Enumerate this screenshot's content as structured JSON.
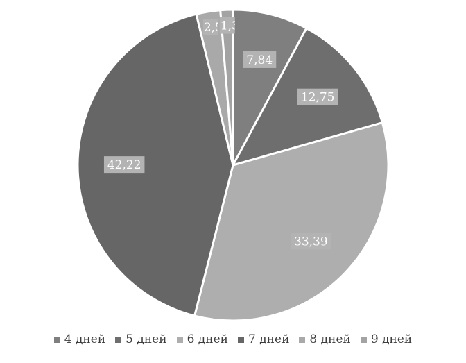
{
  "chart_data": {
    "type": "pie",
    "title": "",
    "categories": [
      "4 дней",
      "5 дней",
      "6 дней",
      "7 дней",
      "8 дней",
      "9 дней"
    ],
    "values": [
      7.84,
      12.75,
      33.39,
      42.22,
      2.5,
      1.3
    ],
    "data_labels": [
      "7,84",
      "12,75",
      "33,39",
      "42,22",
      "2,5",
      "1,30"
    ],
    "colors": [
      "#7f7f7f",
      "#6e6e6e",
      "#aeaeae",
      "#666666",
      "#a9a9a9",
      "#a3a3a3"
    ],
    "label_background": "#b3b3b3",
    "legend_position": "bottom",
    "start_angle_deg": 0,
    "direction": "clockwise"
  }
}
